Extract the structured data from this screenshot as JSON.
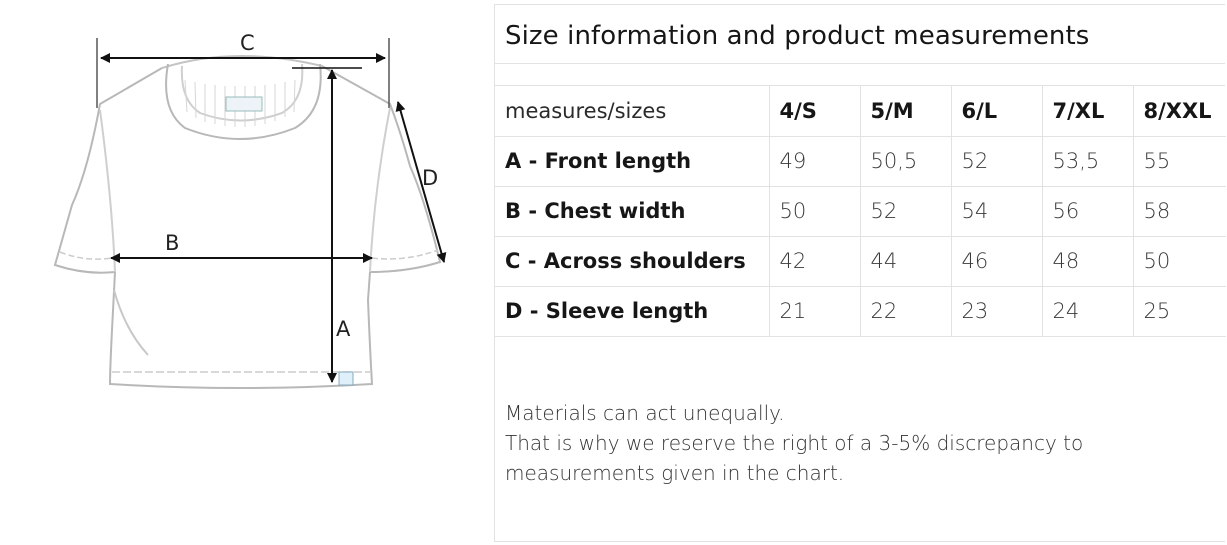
{
  "title": "Size information and product measurements",
  "table": {
    "header": {
      "label": "measures/sizes",
      "sizes": [
        "4/S",
        "5/M",
        "6/L",
        "7/XL",
        "8/XXL"
      ]
    },
    "rows": [
      {
        "label": "A - Front length",
        "values": [
          "49",
          "50,5",
          "52",
          "53,5",
          "55"
        ]
      },
      {
        "label": "B - Chest width",
        "values": [
          "50",
          "52",
          "54",
          "56",
          "58"
        ]
      },
      {
        "label": "C - Across shoulders",
        "values": [
          "42",
          "44",
          "46",
          "48",
          "50"
        ]
      },
      {
        "label": "D - Sleeve length",
        "values": [
          "21",
          "22",
          "23",
          "24",
          "25"
        ]
      }
    ]
  },
  "notes": [
    "Materials can act unequally.",
    "That is why we reserve the right of a 3-5% discrepancy to",
    "measurements given in the chart."
  ],
  "diagram": {
    "labels": {
      "a": "A",
      "b": "B",
      "c": "C",
      "d": "D"
    }
  }
}
